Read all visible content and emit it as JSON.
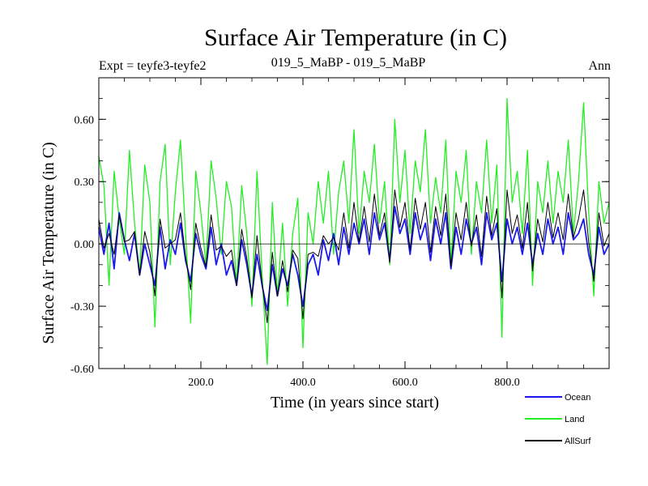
{
  "chart_data": {
    "type": "line",
    "title": "Surface Air Temperature (in C)",
    "subtitle_left": "Expt = teyfe3-teyfe2",
    "subtitle_center": "019_5_MaBP - 019_5_MaBP",
    "subtitle_right": "Ann",
    "xlabel": "Time (in years since start)",
    "ylabel": "Surface Air Temperature (in C)",
    "xlim": [
      0,
      1000
    ],
    "ylim": [
      -0.6,
      0.8
    ],
    "xticks": [
      200,
      400,
      600,
      800
    ],
    "xtick_labels": [
      "200.0",
      "400.0",
      "600.0",
      "800.0"
    ],
    "yticks": [
      -0.6,
      -0.3,
      0.0,
      0.3,
      0.6
    ],
    "ytick_labels": [
      "-0.60",
      "-0.30",
      "0.00",
      "0.30",
      "0.60"
    ],
    "zero_line": 0.0,
    "legend_position": "bottom-right",
    "series_order_note": "Land drawn first, Ocean on top",
    "series": [
      {
        "name": "Land",
        "color": "#22ee22",
        "x": [
          0,
          10,
          20,
          30,
          40,
          50,
          60,
          70,
          80,
          90,
          100,
          110,
          120,
          130,
          140,
          150,
          160,
          170,
          180,
          190,
          200,
          210,
          220,
          230,
          240,
          250,
          260,
          270,
          280,
          290,
          300,
          310,
          320,
          330,
          340,
          350,
          360,
          370,
          380,
          390,
          400,
          410,
          420,
          430,
          440,
          450,
          460,
          470,
          480,
          490,
          500,
          510,
          520,
          530,
          540,
          550,
          560,
          570,
          580,
          590,
          600,
          610,
          620,
          630,
          640,
          650,
          660,
          670,
          680,
          690,
          700,
          710,
          720,
          730,
          740,
          750,
          760,
          770,
          780,
          790,
          800,
          810,
          820,
          830,
          840,
          850,
          860,
          870,
          880,
          890,
          900,
          910,
          920,
          930,
          940,
          950,
          960,
          970,
          980,
          990,
          1000
        ],
        "values": [
          0.42,
          0.28,
          -0.2,
          0.35,
          0.12,
          -0.05,
          0.45,
          0.1,
          -0.15,
          0.38,
          0.2,
          -0.4,
          0.3,
          0.48,
          -0.1,
          0.25,
          0.5,
          0.05,
          -0.38,
          0.35,
          0.15,
          -0.1,
          0.4,
          0.22,
          -0.05,
          0.3,
          0.18,
          -0.2,
          0.28,
          0.05,
          -0.3,
          0.35,
          -0.15,
          -0.58,
          0.2,
          -0.25,
          0.1,
          -0.3,
          0.05,
          0.22,
          -0.5,
          0.15,
          0.0,
          0.3,
          0.1,
          0.35,
          -0.05,
          0.25,
          0.4,
          0.1,
          0.55,
          0.05,
          0.35,
          0.2,
          0.48,
          0.1,
          0.3,
          -0.1,
          0.6,
          0.2,
          0.45,
          0.05,
          0.4,
          0.25,
          0.55,
          0.1,
          0.32,
          0.15,
          0.5,
          -0.1,
          0.35,
          0.2,
          0.45,
          -0.05,
          0.3,
          0.15,
          0.5,
          0.1,
          0.38,
          -0.45,
          0.7,
          0.2,
          0.35,
          0.05,
          0.45,
          -0.2,
          0.3,
          0.15,
          0.4,
          0.1,
          0.35,
          0.2,
          0.5,
          0.05,
          0.3,
          0.68,
          0.15,
          -0.25,
          0.3,
          0.1,
          0.2
        ]
      },
      {
        "name": "Ocean",
        "color": "#1a1aee",
        "x": [
          0,
          10,
          20,
          30,
          40,
          50,
          60,
          70,
          80,
          90,
          100,
          110,
          120,
          130,
          140,
          150,
          160,
          170,
          180,
          190,
          200,
          210,
          220,
          230,
          240,
          250,
          260,
          270,
          280,
          290,
          300,
          310,
          320,
          330,
          340,
          350,
          360,
          370,
          380,
          390,
          400,
          410,
          420,
          430,
          440,
          450,
          460,
          470,
          480,
          490,
          500,
          510,
          520,
          530,
          540,
          550,
          560,
          570,
          580,
          590,
          600,
          610,
          620,
          630,
          640,
          650,
          660,
          670,
          680,
          690,
          700,
          710,
          720,
          730,
          740,
          750,
          760,
          770,
          780,
          790,
          800,
          810,
          820,
          830,
          840,
          850,
          860,
          870,
          880,
          890,
          900,
          910,
          920,
          930,
          940,
          950,
          960,
          970,
          980,
          990,
          1000
        ],
        "values": [
          0.08,
          -0.05,
          0.1,
          -0.12,
          0.15,
          0.02,
          -0.08,
          0.05,
          -0.15,
          0.0,
          -0.1,
          -0.2,
          0.08,
          -0.12,
          0.02,
          -0.05,
          0.1,
          -0.08,
          -0.18,
          0.05,
          -0.05,
          -0.12,
          0.08,
          -0.1,
          0.0,
          -0.15,
          -0.08,
          -0.2,
          0.02,
          -0.1,
          -0.25,
          -0.05,
          -0.2,
          -0.32,
          -0.1,
          -0.25,
          -0.12,
          -0.2,
          -0.05,
          -0.15,
          -0.3,
          -0.1,
          -0.05,
          -0.15,
          0.02,
          -0.08,
          0.05,
          -0.1,
          0.08,
          -0.05,
          0.1,
          0.0,
          0.12,
          -0.05,
          0.15,
          0.02,
          0.1,
          -0.08,
          0.18,
          0.05,
          0.12,
          -0.05,
          0.15,
          0.02,
          0.1,
          -0.08,
          0.12,
          0.0,
          0.15,
          -0.12,
          0.08,
          -0.05,
          0.12,
          0.0,
          0.08,
          -0.1,
          0.15,
          0.02,
          0.1,
          -0.18,
          0.12,
          0.0,
          0.08,
          -0.05,
          0.1,
          -0.1,
          0.05,
          -0.05,
          0.12,
          0.0,
          0.08,
          -0.05,
          0.15,
          0.02,
          0.05,
          0.12,
          -0.05,
          -0.15,
          0.08,
          -0.05,
          0.0
        ]
      },
      {
        "name": "AllSurf",
        "color": "#000000",
        "x": [
          0,
          10,
          20,
          30,
          40,
          50,
          60,
          70,
          80,
          90,
          100,
          110,
          120,
          130,
          140,
          150,
          160,
          170,
          180,
          190,
          200,
          210,
          220,
          230,
          240,
          250,
          260,
          270,
          280,
          290,
          300,
          310,
          320,
          330,
          340,
          350,
          360,
          370,
          380,
          390,
          400,
          410,
          420,
          430,
          440,
          450,
          460,
          470,
          480,
          490,
          500,
          510,
          520,
          530,
          540,
          550,
          560,
          570,
          580,
          590,
          600,
          610,
          620,
          630,
          640,
          650,
          660,
          670,
          680,
          690,
          700,
          710,
          720,
          730,
          740,
          750,
          760,
          770,
          780,
          790,
          800,
          810,
          820,
          830,
          840,
          850,
          860,
          870,
          880,
          890,
          900,
          910,
          920,
          930,
          940,
          950,
          960,
          970,
          980,
          990,
          1000
        ],
        "values": [
          0.12,
          -0.02,
          0.05,
          -0.05,
          0.14,
          0.01,
          0.02,
          0.06,
          -0.15,
          0.06,
          -0.04,
          -0.25,
          0.12,
          -0.02,
          0.0,
          0.02,
          0.15,
          -0.06,
          -0.22,
          0.1,
          -0.02,
          -0.11,
          0.14,
          -0.03,
          -0.01,
          -0.06,
          -0.03,
          -0.2,
          0.07,
          -0.07,
          -0.26,
          0.04,
          -0.19,
          -0.38,
          -0.04,
          -0.25,
          -0.08,
          -0.23,
          -0.03,
          -0.07,
          -0.36,
          -0.05,
          -0.04,
          -0.06,
          0.04,
          0.0,
          0.03,
          -0.03,
          0.15,
          -0.02,
          0.2,
          0.01,
          0.18,
          0.01,
          0.24,
          0.04,
          0.15,
          -0.09,
          0.26,
          0.08,
          0.2,
          -0.03,
          0.22,
          0.07,
          0.2,
          -0.04,
          0.18,
          0.04,
          0.24,
          -0.11,
          0.15,
          0.02,
          0.2,
          -0.01,
          0.14,
          -0.06,
          0.23,
          0.04,
          0.17,
          -0.26,
          0.26,
          0.05,
          0.14,
          -0.02,
          0.2,
          -0.13,
          0.12,
          0.01,
          0.2,
          0.03,
          0.15,
          0.02,
          0.24,
          0.03,
          0.12,
          0.26,
          0.01,
          -0.18,
          0.15,
          -0.01,
          0.05
        ]
      }
    ],
    "legend": [
      {
        "name": "Ocean",
        "color": "#1a1aee"
      },
      {
        "name": "Land",
        "color": "#22ee22"
      },
      {
        "name": "AllSurf",
        "color": "#000000"
      }
    ]
  }
}
